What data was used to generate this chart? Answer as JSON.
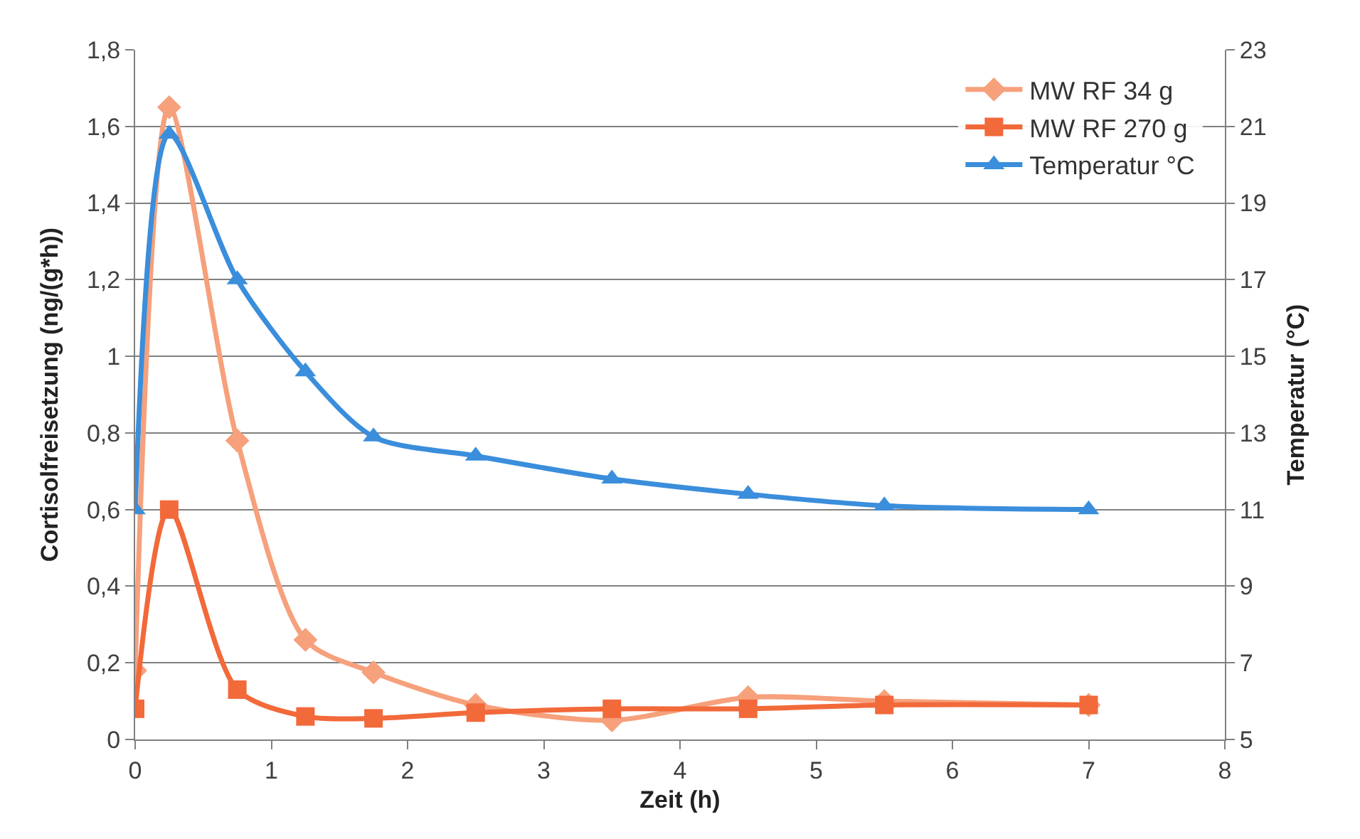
{
  "chart_data": {
    "type": "line",
    "xlabel": "Zeit (h)",
    "ylabel": "Cortisolfreisetzung (ng/(g*h))",
    "y2label": "Temperatur (°C)",
    "x": [
      0,
      0.25,
      0.75,
      1.25,
      1.75,
      2.5,
      3.5,
      4.5,
      5.5,
      7
    ],
    "series": [
      {
        "name": "MW RF 34 g",
        "color": "#f6a07c",
        "marker": "diamond",
        "values": [
          0.18,
          1.65,
          0.78,
          0.26,
          0.175,
          0.09,
          0.05,
          0.11,
          0.1,
          0.09
        ]
      },
      {
        "name": "MW RF 270 g",
        "color": "#f2693a",
        "marker": "square",
        "values": [
          0.08,
          0.6,
          0.13,
          0.06,
          0.055,
          0.07,
          0.08,
          0.08,
          0.09,
          0.09
        ]
      },
      {
        "name": "Temperatur °C",
        "color": "#3a8edb",
        "marker": "triangle",
        "axis": "y2",
        "values": [
          11,
          20.8,
          17,
          14.6,
          12.9,
          12.4,
          11.8,
          11.4,
          11.1,
          11
        ]
      }
    ],
    "xlim": [
      0,
      8
    ],
    "xticks": [
      0,
      1,
      2,
      3,
      4,
      5,
      6,
      7,
      8
    ],
    "ylim": [
      0,
      1.8
    ],
    "yticks": [
      0,
      {
        "value": 0.2,
        "label": "0,2"
      },
      {
        "value": 0.4,
        "label": "0,4"
      },
      {
        "value": 0.6,
        "label": "0,6"
      },
      {
        "value": 0.8,
        "label": "0,8"
      },
      1,
      {
        "value": 1.2,
        "label": "1,2"
      },
      {
        "value": 1.4,
        "label": "1,4"
      },
      {
        "value": 1.6,
        "label": "1,6"
      },
      {
        "value": 1.8,
        "label": "1,8"
      }
    ],
    "y2lim": [
      5,
      23
    ],
    "y2ticks": [
      5,
      7,
      9,
      11,
      13,
      15,
      17,
      19,
      21,
      23
    ],
    "grid": "y",
    "legend": "top right"
  }
}
